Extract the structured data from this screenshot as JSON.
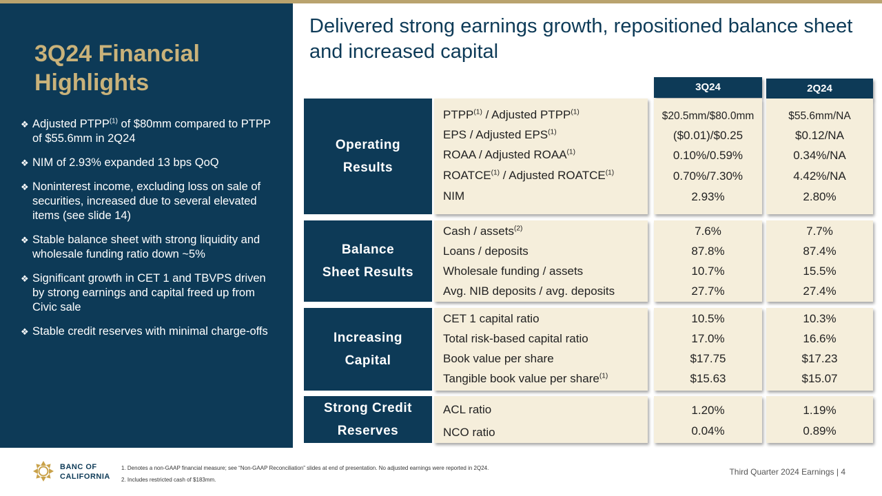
{
  "title": "3Q24 Financial Highlights",
  "headline": "Delivered strong earnings growth, repositioned balance sheet and increased capital",
  "bullets": [
    {
      "pre": "Adjusted PTPP",
      "sup": "(1)",
      "post": " of $80mm compared to PTPP of $55.6mm in 2Q24"
    },
    {
      "text": "NIM of 2.93% expanded 13 bps QoQ"
    },
    {
      "text": "Noninterest income, excluding loss on sale of securities, increased due to several elevated items (see slide 14)"
    },
    {
      "text": "Stable balance sheet with strong liquidity and wholesale funding ratio down ~5%"
    },
    {
      "text": "Significant growth in CET 1 and TBVPS driven by strong earnings and capital freed up from Civic sale"
    },
    {
      "text": "Stable credit reserves with minimal charge-offs"
    }
  ],
  "columns": {
    "current": "3Q24",
    "prior": "2Q24"
  },
  "sections": {
    "operating": {
      "label_line1": "Operating",
      "label_line2": "Results",
      "rows": [
        {
          "m1": "PTPP",
          "s1": "(1)",
          "m2": " / Adjusted PTPP",
          "s2": "(1)",
          "q3": "$20.5mm/$80.0mm",
          "q2": "$55.6mm/NA"
        },
        {
          "m1": "EPS / Adjusted EPS",
          "s1": "(1)",
          "m2": "",
          "s2": "",
          "q3": "($0.01)/$0.25",
          "q2": "$0.12/NA"
        },
        {
          "m1": "ROAA / Adjusted ROAA",
          "s1": "(1)",
          "m2": "",
          "s2": "",
          "q3": "0.10%/0.59%",
          "q2": "0.34%/NA"
        },
        {
          "m1": "ROATCE",
          "s1": "(1)",
          "m2": " / Adjusted ROATCE",
          "s2": "(1)",
          "q3": "0.70%/7.30%",
          "q2": "4.42%/NA"
        },
        {
          "m1": "NIM",
          "s1": "",
          "m2": "",
          "s2": "",
          "q3": "2.93%",
          "q2": "2.80%"
        }
      ]
    },
    "balance": {
      "label_line1": "Balance",
      "label_line2": "Sheet Results",
      "rows": [
        {
          "m1": "Cash / assets",
          "s1": "(2)",
          "q3": "7.6%",
          "q2": "7.7%"
        },
        {
          "m1": "Loans / deposits",
          "s1": "",
          "q3": "87.8%",
          "q2": "87.4%"
        },
        {
          "m1": "Wholesale funding / assets",
          "s1": "",
          "q3": "10.7%",
          "q2": "15.5%"
        },
        {
          "m1": "Avg. NIB deposits / avg. deposits",
          "s1": "",
          "q3": "27.7%",
          "q2": "27.4%"
        }
      ]
    },
    "capital": {
      "label_line1": "Increasing",
      "label_line2": "Capital",
      "rows": [
        {
          "m1": "CET 1 capital ratio",
          "s1": "",
          "q3": "10.5%",
          "q2": "10.3%"
        },
        {
          "m1": "Total risk-based capital ratio",
          "s1": "",
          "q3": "17.0%",
          "q2": "16.6%"
        },
        {
          "m1": "Book value per share",
          "s1": "",
          "q3": "$17.75",
          "q2": "$17.23"
        },
        {
          "m1": "Tangible book value per share",
          "s1": "(1)",
          "q3": "$15.63",
          "q2": "$15.07"
        }
      ]
    },
    "credit": {
      "label_line1": "Strong Credit",
      "label_line2": "Reserves",
      "rows": [
        {
          "m1": "ACL ratio",
          "q3": "1.20%",
          "q2": "1.19%"
        },
        {
          "m1": "NCO ratio",
          "q3": "0.04%",
          "q2": "0.89%"
        }
      ]
    }
  },
  "footer": {
    "logo_line1": "BANC OF",
    "logo_line2": "CALIFORNIA",
    "footnote1": "1.  Denotes a non-GAAP financial measure; see “Non-GAAP Reconciliation” slides at end of presentation. No adjusted earnings were reported in 2Q24.",
    "footnote2": "2.  Includes restricted cash of $183mm.",
    "page_label": "Third Quarter 2024 Earnings |  4"
  },
  "colors": {
    "navy": "#0d3a57",
    "gold": "#c9b27a",
    "cream": "#f5eedb",
    "rule": "#b9a36e"
  },
  "icons": {
    "bullet": "diamond-bullet-icon",
    "logo": "banc-of-california-logo"
  }
}
